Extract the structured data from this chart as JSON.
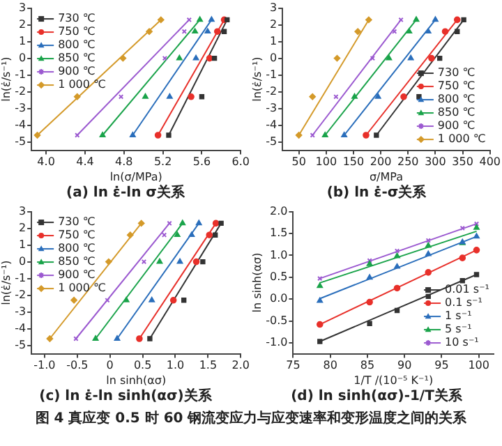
{
  "chart_data": [
    {
      "type": "scatter",
      "title": "(a) ln ε̇-ln σ关系",
      "xlabel": "ln(σ/MPa)",
      "ylabel": "ln(ε̇/s⁻¹)",
      "xlim": [
        3.85,
        6.0
      ],
      "xticks": [
        {
          "value": 4,
          "label": "4.0"
        },
        4.4,
        4.8,
        5.2,
        5.6,
        {
          "value": 6,
          "label": "6.0"
        }
      ],
      "ylim": [
        -5.5,
        3
      ],
      "yticks": [
        -5,
        -4,
        -3,
        -2,
        -1,
        0,
        1,
        2,
        3
      ],
      "legend": "top left",
      "annotations": [
        "图 4  真应变 0.5 时 60 钢流变应力与应变速率和变形温度之间的关系"
      ],
      "series": [
        {
          "name": "730 ℃",
          "color": "#333333",
          "marker": "square",
          "x": [
            5.26,
            5.6,
            5.73,
            5.83,
            5.86
          ],
          "values": [
            -4.6,
            -2.3,
            0,
            1.6,
            2.3
          ]
        },
        {
          "name": "750 ℃",
          "color": "#e8302a",
          "marker": "circle",
          "x": [
            5.15,
            5.49,
            5.68,
            5.76,
            5.83
          ],
          "values": [
            -4.6,
            -2.3,
            0,
            1.6,
            2.3
          ]
        },
        {
          "name": "800 ℃",
          "color": "#2a6ebb",
          "marker": "triangle",
          "x": [
            4.89,
            5.27,
            5.54,
            5.66,
            5.7
          ],
          "values": [
            -4.6,
            -2.3,
            0,
            1.6,
            2.3
          ]
        },
        {
          "name": "850 ℃",
          "color": "#1aa34a",
          "marker": "triangle",
          "x": [
            4.58,
            5.02,
            5.37,
            5.53,
            5.58
          ],
          "values": [
            -4.6,
            -2.3,
            0,
            1.6,
            2.3
          ]
        },
        {
          "name": "900 ℃",
          "color": "#9b59d0",
          "marker": "cross",
          "x": [
            4.32,
            4.77,
            5.22,
            5.42,
            5.47
          ],
          "values": [
            -4.6,
            -2.3,
            0,
            1.6,
            2.3
          ]
        },
        {
          "name": "1 000 ℃",
          "color": "#d49a2a",
          "marker": "diamond",
          "x": [
            3.91,
            4.32,
            4.79,
            5.06,
            5.18
          ],
          "values": [
            -4.6,
            -2.3,
            0,
            1.6,
            2.3
          ]
        },
        {
          "type": "line",
          "color": "#333333",
          "marker": "none",
          "x": [
            5.26,
            5.86
          ],
          "values": [
            -4.6,
            2.3
          ]
        },
        {
          "type": "line",
          "color": "#e8302a",
          "marker": "none",
          "x": [
            5.15,
            5.83
          ],
          "values": [
            -4.6,
            2.3
          ]
        },
        {
          "type": "line",
          "color": "#2a6ebb",
          "marker": "none",
          "x": [
            4.89,
            5.7
          ],
          "values": [
            -4.6,
            2.3
          ]
        },
        {
          "type": "line",
          "color": "#1aa34a",
          "marker": "none",
          "x": [
            4.58,
            5.58
          ],
          "values": [
            -4.6,
            2.3
          ]
        },
        {
          "type": "line",
          "color": "#9b59d0",
          "marker": "none",
          "x": [
            4.32,
            5.47
          ],
          "values": [
            -4.6,
            2.3
          ]
        },
        {
          "type": "line",
          "color": "#d49a2a",
          "marker": "none",
          "x": [
            3.91,
            5.18
          ],
          "values": [
            -4.6,
            2.3
          ]
        }
      ]
    },
    {
      "type": "scatter",
      "title": "(b) ln ε̇-σ关系",
      "xlabel": "σ/MPa",
      "ylabel": "ln(ε̇/s⁻¹)",
      "xlim": [
        20,
        400
      ],
      "xticks": [
        50,
        100,
        150,
        200,
        250,
        300,
        350,
        400
      ],
      "ylim": [
        -5.5,
        3
      ],
      "yticks": [
        -5,
        -4,
        -3,
        -2,
        -1,
        0,
        1,
        2,
        3
      ],
      "legend": "bottom right",
      "series": [
        {
          "name": "730 ℃",
          "color": "#333333",
          "marker": "square",
          "x": [
            192,
            270,
            308,
            340,
            352
          ],
          "values": [
            -4.6,
            -2.3,
            0,
            1.6,
            2.3
          ]
        },
        {
          "name": "750 ℃",
          "color": "#e8302a",
          "marker": "circle",
          "x": [
            173,
            242,
            293,
            318,
            340
          ],
          "values": [
            -4.6,
            -2.3,
            0,
            1.6,
            2.3
          ]
        },
        {
          "name": "800 ℃",
          "color": "#2a6ebb",
          "marker": "triangle",
          "x": [
            133,
            195,
            255,
            287,
            300
          ],
          "values": [
            -4.6,
            -2.3,
            0,
            1.6,
            2.3
          ]
        },
        {
          "name": "850 ℃",
          "color": "#1aa34a",
          "marker": "triangle",
          "x": [
            98,
            152,
            215,
            252,
            265
          ],
          "values": [
            -4.6,
            -2.3,
            0,
            1.6,
            2.3
          ]
        },
        {
          "name": "900 ℃",
          "color": "#9b59d0",
          "marker": "cross",
          "x": [
            75,
            118,
            185,
            225,
            237
          ],
          "values": [
            -4.6,
            -2.3,
            0,
            1.6,
            2.3
          ]
        },
        {
          "name": "1 000 ℃",
          "color": "#d49a2a",
          "marker": "diamond",
          "x": [
            50,
            75,
            120,
            158,
            178
          ],
          "values": [
            -4.6,
            -2.3,
            0,
            1.6,
            2.3
          ]
        },
        {
          "type": "line",
          "color": "#333333",
          "marker": "none",
          "x": [
            192,
            352
          ],
          "values": [
            -4.6,
            2.3
          ]
        },
        {
          "type": "line",
          "color": "#e8302a",
          "marker": "none",
          "x": [
            173,
            340
          ],
          "values": [
            -4.6,
            2.3
          ]
        },
        {
          "type": "line",
          "color": "#2a6ebb",
          "marker": "none",
          "x": [
            133,
            300
          ],
          "values": [
            -4.6,
            2.3
          ]
        },
        {
          "type": "line",
          "color": "#1aa34a",
          "marker": "none",
          "x": [
            98,
            265
          ],
          "values": [
            -4.6,
            2.3
          ]
        },
        {
          "type": "line",
          "color": "#9b59d0",
          "marker": "none",
          "x": [
            75,
            237
          ],
          "values": [
            -4.6,
            2.3
          ]
        },
        {
          "type": "line",
          "color": "#d49a2a",
          "marker": "none",
          "x": [
            50,
            178
          ],
          "values": [
            -4.6,
            2.3
          ]
        }
      ]
    },
    {
      "type": "scatter",
      "title": "(c) ln ε̇-ln sinh(ασ)关系",
      "xlabel": "ln sinh(ασ)",
      "ylabel": "ln(ε̇/s⁻¹)",
      "xlim": [
        -1.2,
        2.0
      ],
      "xticks": [
        {
          "value": -1,
          "label": "-1.0"
        },
        -0.5,
        {
          "value": 0,
          "label": "0"
        },
        0.5,
        {
          "value": 1,
          "label": "1.0"
        },
        1.5,
        {
          "value": 2,
          "label": "2.0"
        }
      ],
      "ylim": [
        -5.5,
        3
      ],
      "yticks": [
        -5,
        -4,
        -3,
        -2,
        -1,
        0,
        1,
        2,
        3
      ],
      "legend": "top left",
      "series": [
        {
          "name": "730 ℃",
          "color": "#333333",
          "marker": "square",
          "x": [
            0.61,
            1.13,
            1.42,
            1.61,
            1.7
          ],
          "values": [
            -4.6,
            -2.3,
            0,
            1.6,
            2.3
          ]
        },
        {
          "name": "750 ℃",
          "color": "#e8302a",
          "marker": "circle",
          "x": [
            0.45,
            0.97,
            1.32,
            1.52,
            1.62
          ],
          "values": [
            -4.6,
            -2.3,
            0,
            1.6,
            2.3
          ]
        },
        {
          "name": "800 ℃",
          "color": "#2a6ebb",
          "marker": "triangle",
          "x": [
            0.11,
            0.64,
            1.07,
            1.25,
            1.36
          ],
          "values": [
            -4.6,
            -2.3,
            0,
            1.6,
            2.3
          ]
        },
        {
          "name": "850 ℃",
          "color": "#1aa34a",
          "marker": "triangle",
          "x": [
            -0.22,
            0.25,
            0.76,
            1.03,
            1.11
          ],
          "values": [
            -4.6,
            -2.3,
            0,
            1.6,
            2.3
          ]
        },
        {
          "name": "900 ℃",
          "color": "#9b59d0",
          "marker": "cross",
          "x": [
            -0.52,
            -0.04,
            0.52,
            0.83,
            0.91
          ],
          "values": [
            -4.6,
            -2.3,
            0,
            1.6,
            2.3
          ]
        },
        {
          "name": "1 000 ℃",
          "color": "#d49a2a",
          "marker": "diamond",
          "x": [
            -0.92,
            -0.55,
            -0.02,
            0.31,
            0.48
          ],
          "values": [
            -4.6,
            -2.3,
            0,
            1.6,
            2.3
          ]
        },
        {
          "type": "line",
          "color": "#333333",
          "marker": "none",
          "x": [
            0.61,
            1.7
          ],
          "values": [
            -4.6,
            2.3
          ]
        },
        {
          "type": "line",
          "color": "#e8302a",
          "marker": "none",
          "x": [
            0.45,
            1.62
          ],
          "values": [
            -4.6,
            2.3
          ]
        },
        {
          "type": "line",
          "color": "#2a6ebb",
          "marker": "none",
          "x": [
            0.11,
            1.36
          ],
          "values": [
            -4.6,
            2.3
          ]
        },
        {
          "type": "line",
          "color": "#1aa34a",
          "marker": "none",
          "x": [
            -0.22,
            1.11
          ],
          "values": [
            -4.6,
            2.3
          ]
        },
        {
          "type": "line",
          "color": "#9b59d0",
          "marker": "none",
          "x": [
            -0.52,
            0.91
          ],
          "values": [
            -4.6,
            2.3
          ]
        },
        {
          "type": "line",
          "color": "#d49a2a",
          "marker": "none",
          "x": [
            -0.92,
            0.48
          ],
          "values": [
            -4.6,
            2.3
          ]
        }
      ]
    },
    {
      "type": "scatter",
      "title": "(d) ln sinh(ασ)-1/T关系",
      "xlabel": "1/T /(10⁻⁵ K⁻¹)",
      "ylabel": "ln sinh(ασ)",
      "xlim": [
        75,
        102
      ],
      "xticks": [
        75,
        80,
        85,
        90,
        95,
        100
      ],
      "ylim": [
        -1.25,
        2.0
      ],
      "yticks": [
        {
          "value": -1,
          "label": "-1.0"
        },
        -0.5,
        {
          "value": 0,
          "label": "0.0"
        },
        0.5,
        {
          "value": 1,
          "label": "1.0"
        },
        1.5,
        {
          "value": 2,
          "label": "2.0"
        }
      ],
      "legend": "bottom right",
      "series": [
        {
          "name": "0.01 s⁻¹",
          "color": "#333333",
          "marker": "square",
          "x": [
            78.6,
            85.3,
            89.0,
            93.2,
            97.8,
            99.7
          ],
          "values": [
            -0.97,
            -0.56,
            -0.26,
            0.06,
            0.42,
            0.56
          ]
        },
        {
          "name": "0.1 s⁻¹",
          "color": "#e8302a",
          "marker": "circle",
          "x": [
            78.6,
            85.3,
            89.0,
            93.2,
            97.8,
            99.7
          ],
          "values": [
            -0.58,
            -0.07,
            0.25,
            0.61,
            0.94,
            1.12
          ]
        },
        {
          "name": "1 s⁻¹",
          "color": "#2a6ebb",
          "marker": "triangle",
          "x": [
            78.6,
            85.3,
            89.0,
            93.2,
            97.8,
            99.7
          ],
          "values": [
            -0.04,
            0.49,
            0.74,
            1.03,
            1.3,
            1.43
          ]
        },
        {
          "name": "5 s⁻¹",
          "color": "#1aa34a",
          "marker": "triangle",
          "x": [
            78.6,
            85.3,
            89.0,
            93.2,
            97.8,
            99.7
          ],
          "values": [
            0.3,
            0.8,
            0.98,
            1.22,
            1.28,
            1.63
          ]
        },
        {
          "name": "10 s⁻¹",
          "color": "#9b59d0",
          "marker": "cross",
          "x": [
            78.6,
            85.3,
            89.0,
            93.2,
            97.8,
            99.7
          ],
          "values": [
            0.47,
            0.88,
            1.1,
            1.34,
            1.62,
            1.72
          ]
        },
        {
          "type": "line",
          "color": "#333333",
          "marker": "none",
          "x": [
            78.6,
            99.7
          ],
          "values": [
            -0.97,
            0.56
          ]
        },
        {
          "type": "line",
          "color": "#e8302a",
          "marker": "none",
          "x": [
            78.6,
            99.7
          ],
          "values": [
            -0.58,
            1.12
          ]
        },
        {
          "type": "line",
          "color": "#2a6ebb",
          "marker": "none",
          "x": [
            78.6,
            99.7
          ],
          "values": [
            0.01,
            1.43
          ]
        },
        {
          "type": "line",
          "color": "#1aa34a",
          "marker": "none",
          "x": [
            78.6,
            99.7
          ],
          "values": [
            0.37,
            1.55
          ]
        },
        {
          "type": "line",
          "color": "#9b59d0",
          "marker": "none",
          "x": [
            78.6,
            99.7
          ],
          "values": [
            0.47,
            1.72
          ]
        }
      ]
    }
  ]
}
